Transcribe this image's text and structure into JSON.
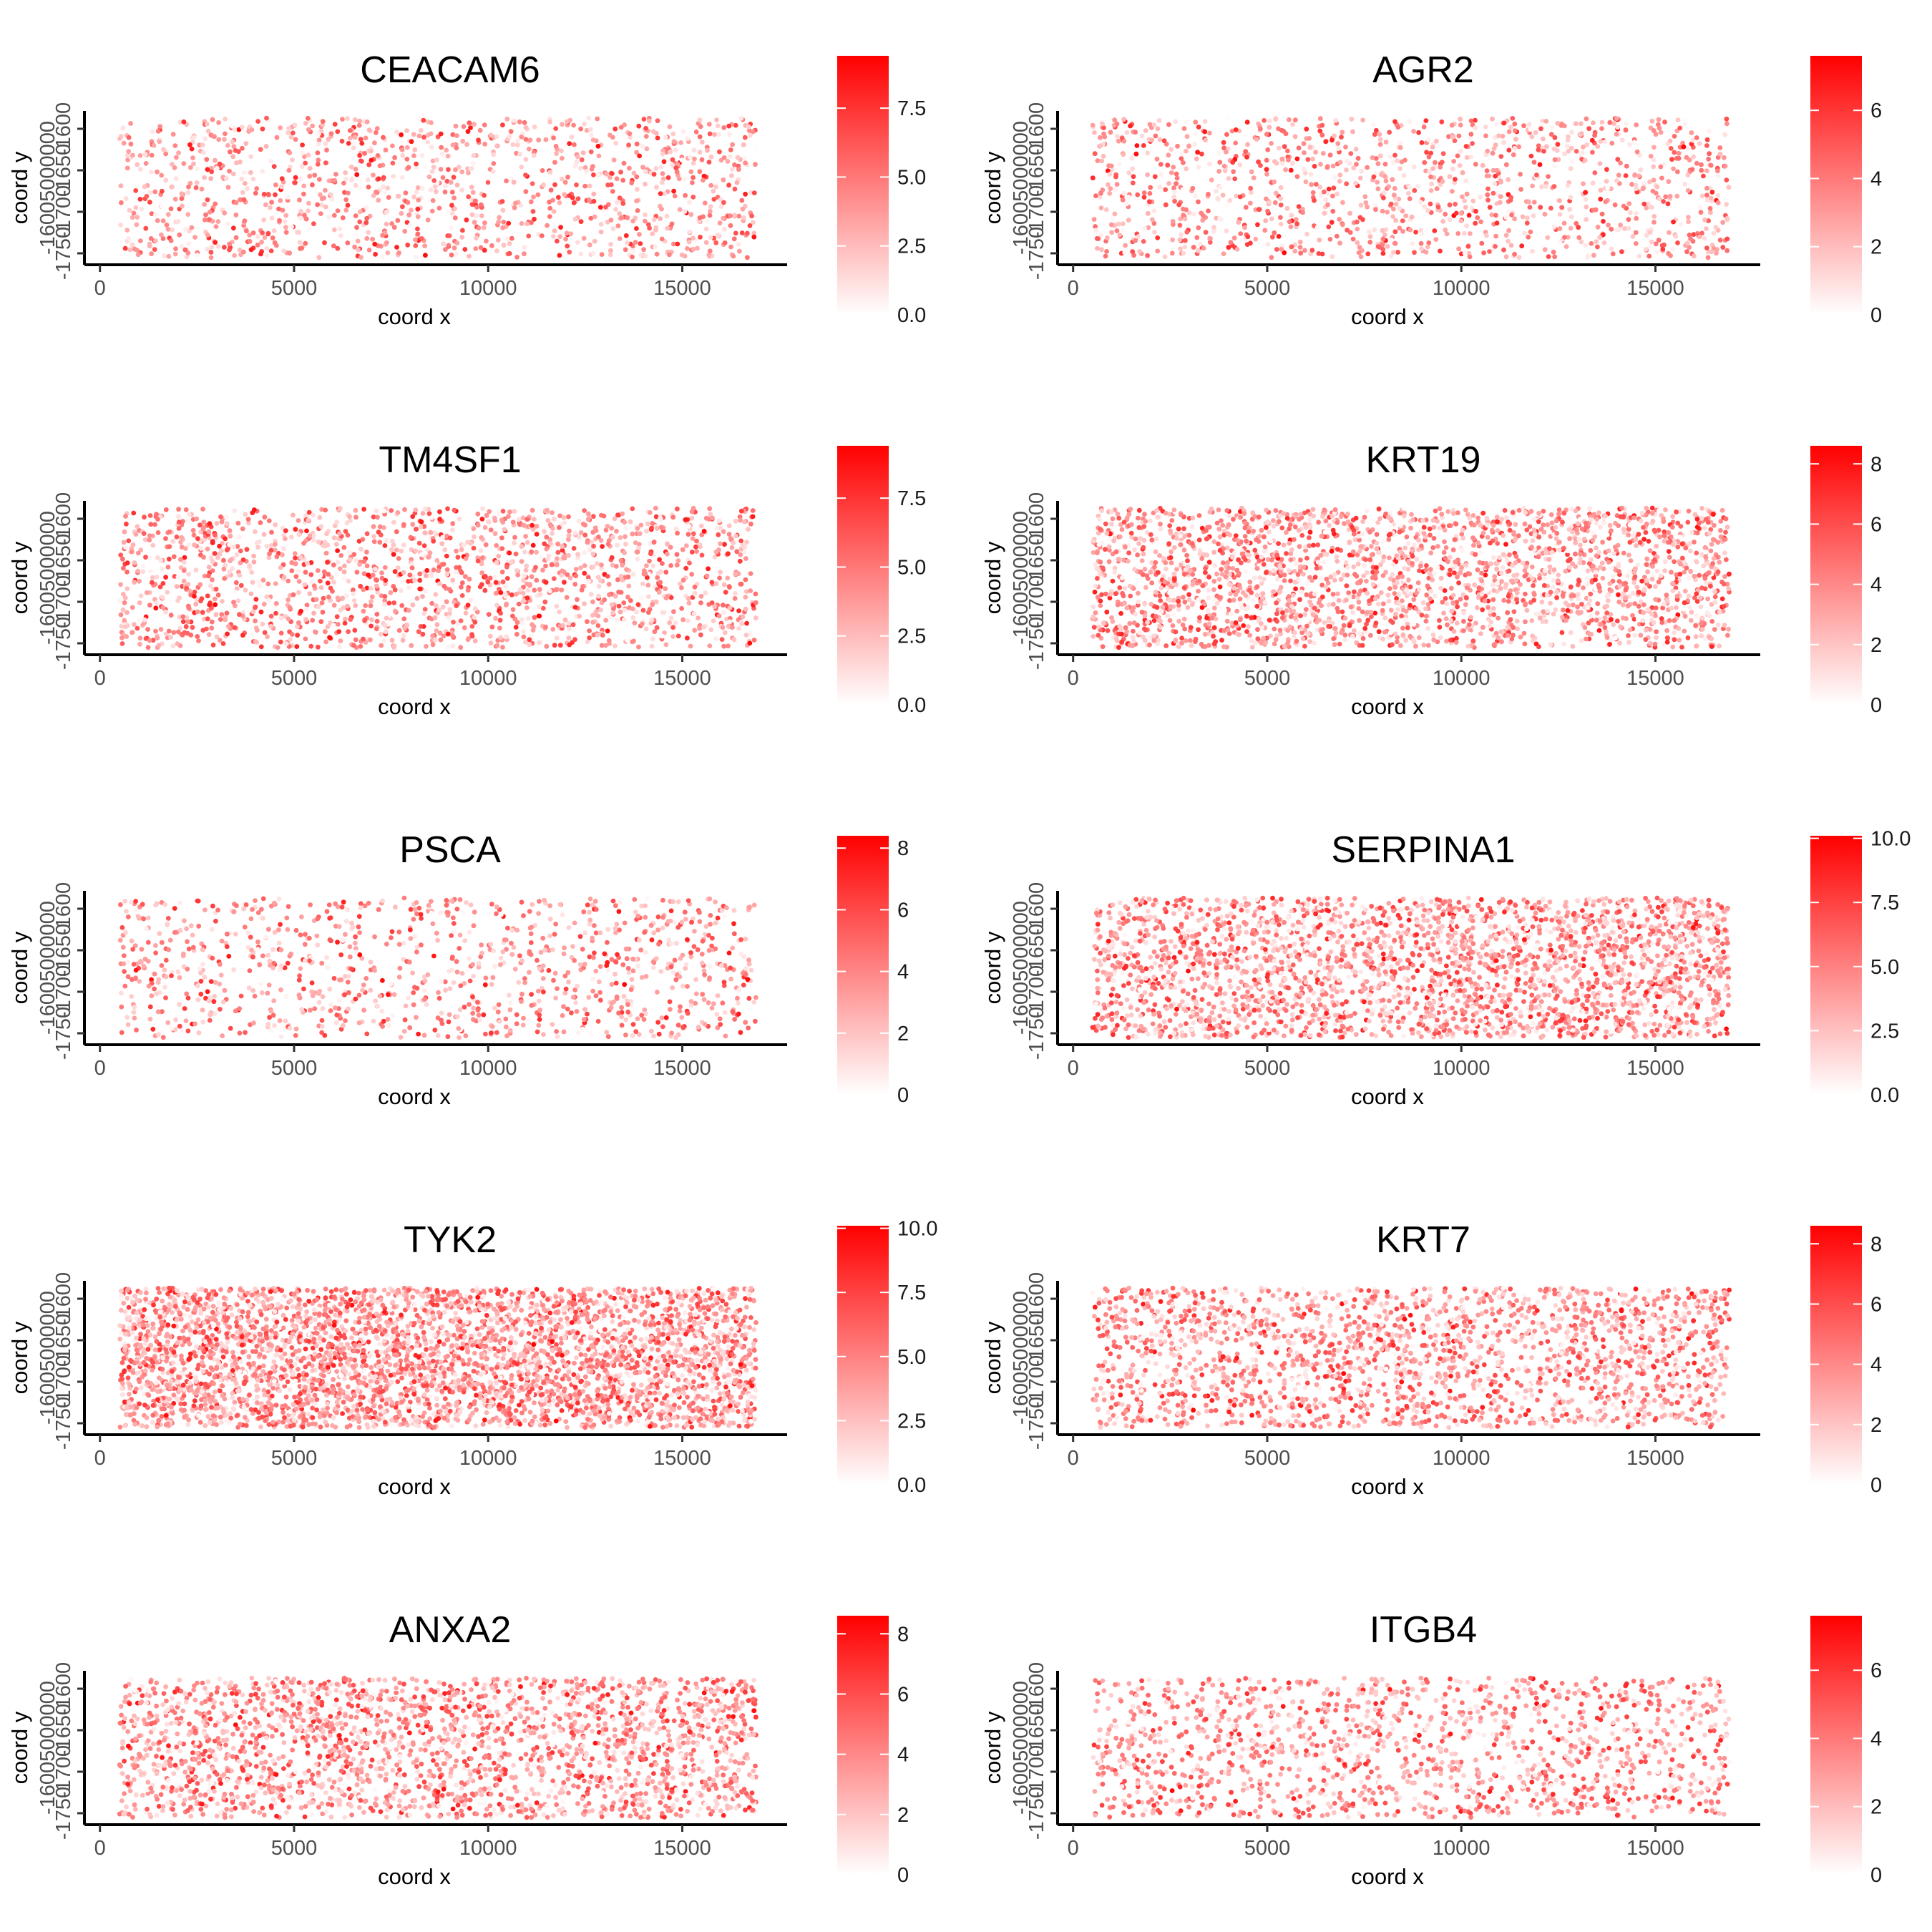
{
  "figure": {
    "point_color_low": "#ffffff",
    "point_color_high": "#ff0000"
  },
  "chart_data": [
    {
      "type": "scatter",
      "title": "CEACAM6",
      "xlabel": "coord x",
      "ylabel": "coord y",
      "xlim": [
        -400,
        17700
      ],
      "x_ticks": [
        0,
        5000,
        10000,
        15000
      ],
      "y_tick_labels": [
        "-1600",
        "-1650",
        "-1700",
        "-1750"
      ],
      "y_tick_overlay_text": "-16005000000",
      "legend": {
        "ticks": [
          0.0,
          2.5,
          5.0,
          7.5
        ],
        "tick_labels": [
          "0.0",
          "2.5",
          "5.0",
          "7.5"
        ],
        "max": 9.4,
        "position": "right"
      },
      "n_points": 1300,
      "seed": 11
    },
    {
      "type": "scatter",
      "title": "AGR2",
      "xlabel": "coord x",
      "ylabel": "coord y",
      "xlim": [
        -400,
        17700
      ],
      "x_ticks": [
        0,
        5000,
        10000,
        15000
      ],
      "y_tick_labels": [
        "-1600",
        "-1650",
        "-1700",
        "-1750"
      ],
      "y_tick_overlay_text": "-16005000000",
      "legend": {
        "ticks": [
          0,
          2,
          4,
          6
        ],
        "tick_labels": [
          "0",
          "2",
          "4",
          "6"
        ],
        "max": 7.6,
        "position": "right"
      },
      "n_points": 1300,
      "seed": 23
    },
    {
      "type": "scatter",
      "title": "TM4SF1",
      "xlabel": "coord x",
      "ylabel": "coord y",
      "xlim": [
        -400,
        17700
      ],
      "x_ticks": [
        0,
        5000,
        10000,
        15000
      ],
      "y_tick_labels": [
        "-1600",
        "-1650",
        "-1700",
        "-1750"
      ],
      "y_tick_overlay_text": "-16005000000",
      "legend": {
        "ticks": [
          0.0,
          2.5,
          5.0,
          7.5
        ],
        "tick_labels": [
          "0.0",
          "2.5",
          "5.0",
          "7.5"
        ],
        "max": 9.4,
        "position": "right"
      },
      "n_points": 1800,
      "seed": 37
    },
    {
      "type": "scatter",
      "title": "KRT19",
      "xlabel": "coord x",
      "ylabel": "coord y",
      "xlim": [
        -400,
        17700
      ],
      "x_ticks": [
        0,
        5000,
        10000,
        15000
      ],
      "y_tick_labels": [
        "-1600",
        "-1650",
        "-1700",
        "-1750"
      ],
      "y_tick_overlay_text": "-16005000000",
      "legend": {
        "ticks": [
          0,
          2,
          4,
          6,
          8
        ],
        "tick_labels": [
          "0",
          "2",
          "4",
          "6",
          "8"
        ],
        "max": 8.6,
        "position": "right"
      },
      "n_points": 2600,
      "seed": 41
    },
    {
      "type": "scatter",
      "title": "PSCA",
      "xlabel": "coord x",
      "ylabel": "coord y",
      "xlim": [
        -400,
        17700
      ],
      "x_ticks": [
        0,
        5000,
        10000,
        15000
      ],
      "y_tick_labels": [
        "-1600",
        "-1650",
        "-1700",
        "-1750"
      ],
      "y_tick_overlay_text": "-16005000000",
      "legend": {
        "ticks": [
          0,
          2,
          4,
          6,
          8
        ],
        "tick_labels": [
          "0",
          "2",
          "4",
          "6",
          "8"
        ],
        "max": 8.4,
        "position": "right"
      },
      "n_points": 1100,
      "seed": 53
    },
    {
      "type": "scatter",
      "title": "SERPINA1",
      "xlabel": "coord x",
      "ylabel": "coord y",
      "xlim": [
        -400,
        17700
      ],
      "x_ticks": [
        0,
        5000,
        10000,
        15000
      ],
      "y_tick_labels": [
        "-1600",
        "-1650",
        "-1700",
        "-1750"
      ],
      "y_tick_overlay_text": "-16005000000",
      "legend": {
        "ticks": [
          0.0,
          2.5,
          5.0,
          7.5,
          10.0
        ],
        "tick_labels": [
          "0.0",
          "2.5",
          "5.0",
          "7.5",
          "10.0"
        ],
        "max": 10.1,
        "position": "right"
      },
      "n_points": 2800,
      "seed": 67
    },
    {
      "type": "scatter",
      "title": "TYK2",
      "xlabel": "coord x",
      "ylabel": "coord y",
      "xlim": [
        -400,
        17700
      ],
      "x_ticks": [
        0,
        5000,
        10000,
        15000
      ],
      "y_tick_labels": [
        "-1600",
        "-1650",
        "-1700",
        "-1750"
      ],
      "y_tick_overlay_text": "-16005000000",
      "legend": {
        "ticks": [
          0.0,
          2.5,
          5.0,
          7.5,
          10.0
        ],
        "tick_labels": [
          "0.0",
          "2.5",
          "5.0",
          "7.5",
          "10.0"
        ],
        "max": 10.1,
        "position": "right"
      },
      "n_points": 4200,
      "seed": 71
    },
    {
      "type": "scatter",
      "title": "KRT7",
      "xlabel": "coord x",
      "ylabel": "coord y",
      "xlim": [
        -400,
        17700
      ],
      "x_ticks": [
        0,
        5000,
        10000,
        15000
      ],
      "y_tick_labels": [
        "-1600",
        "-1650",
        "-1700",
        "-1750"
      ],
      "y_tick_overlay_text": "-16005000000",
      "legend": {
        "ticks": [
          0,
          2,
          4,
          6,
          8
        ],
        "tick_labels": [
          "0",
          "2",
          "4",
          "6",
          "8"
        ],
        "max": 8.6,
        "position": "right"
      },
      "n_points": 2100,
      "seed": 83
    },
    {
      "type": "scatter",
      "title": "ANXA2",
      "xlabel": "coord x",
      "ylabel": "coord y",
      "xlim": [
        -400,
        17700
      ],
      "x_ticks": [
        0,
        5000,
        10000,
        15000
      ],
      "y_tick_labels": [
        "-1600",
        "-1650",
        "-1700",
        "-1750"
      ],
      "y_tick_overlay_text": "-16005000000",
      "legend": {
        "ticks": [
          0,
          2,
          4,
          6,
          8
        ],
        "tick_labels": [
          "0",
          "2",
          "4",
          "6",
          "8"
        ],
        "max": 8.6,
        "position": "right"
      },
      "n_points": 2400,
      "seed": 97
    },
    {
      "type": "scatter",
      "title": "ITGB4",
      "xlabel": "coord x",
      "ylabel": "coord y",
      "xlim": [
        -400,
        17700
      ],
      "x_ticks": [
        0,
        5000,
        10000,
        15000
      ],
      "y_tick_labels": [
        "-1600",
        "-1650",
        "-1700",
        "-1750"
      ],
      "y_tick_overlay_text": "-16005000000",
      "legend": {
        "ticks": [
          0,
          2,
          4,
          6
        ],
        "tick_labels": [
          "0",
          "2",
          "4",
          "6"
        ],
        "max": 7.6,
        "position": "right"
      },
      "n_points": 1500,
      "seed": 101
    }
  ]
}
